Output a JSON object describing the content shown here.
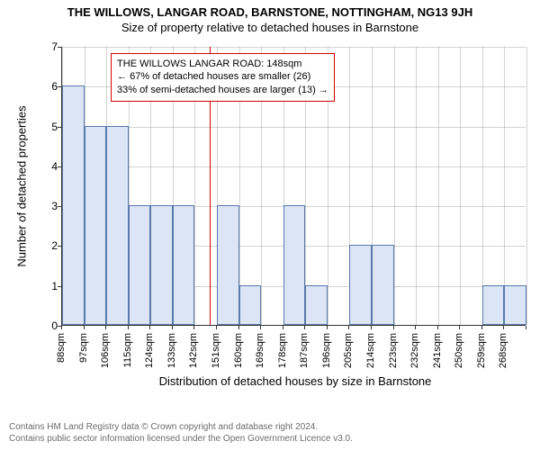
{
  "title_main": "THE WILLOWS, LANGAR ROAD, BARNSTONE, NOTTINGHAM, NG13 9JH",
  "title_sub": "Size of property relative to detached houses in Barnstone",
  "title_main_fontsize": 13,
  "title_sub_fontsize": 13,
  "ylabel": "Number of detached properties",
  "xlabel": "Distribution of detached houses by size in Barnstone",
  "label_fontsize": 13,
  "chart": {
    "type": "histogram",
    "background_color": "#ffffff",
    "grid_color": "#808080",
    "bar_fill": "#dbe5f6",
    "bar_border": "#5a7aa8",
    "bar_border_width": 1,
    "ylim": [
      0,
      7
    ],
    "ytick_step": 1,
    "yticks": [
      0,
      1,
      2,
      3,
      4,
      5,
      6,
      7
    ],
    "categories": [
      "88sqm",
      "97sqm",
      "106sqm",
      "115sqm",
      "124sqm",
      "133sqm",
      "142sqm",
      "151sqm",
      "160sqm",
      "169sqm",
      "178sqm",
      "187sqm",
      "196sqm",
      "205sqm",
      "214sqm",
      "223sqm",
      "232sqm",
      "241sqm",
      "250sqm",
      "259sqm",
      "268sqm"
    ],
    "values": [
      6,
      5,
      5,
      3,
      3,
      3,
      0,
      3,
      1,
      0,
      3,
      1,
      0,
      2,
      2,
      0,
      0,
      0,
      0,
      1,
      1
    ],
    "bar_rel_width": 1.0,
    "marker": {
      "value_sqm": 148,
      "color": "#d40000",
      "x_label_index": 6.67
    },
    "annotation": {
      "border_color": "#d40000",
      "lines": [
        "THE WILLOWS LANGAR ROAD: 148sqm",
        "← 67% of detached houses are smaller (26)",
        "33% of semi-detached houses are larger (13) →"
      ],
      "left_label_index": 2.2,
      "top_y_value": 6.85
    }
  },
  "footer_line1": "Contains HM Land Registry data © Crown copyright and database right 2024.",
  "footer_line2": "Contains public sector information licensed under the Open Government Licence v3.0."
}
